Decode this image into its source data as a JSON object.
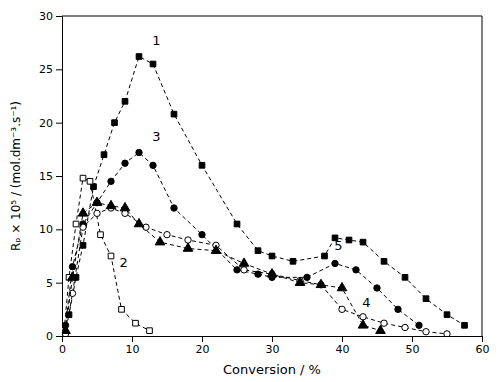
{
  "chart_data": {
    "type": "line",
    "xlabel": "Conversion / %",
    "ylabel": "Rₚ × 10⁵ / (mol.dm⁻³.s⁻¹)",
    "xlim": [
      0,
      60
    ],
    "ylim": [
      0,
      30
    ],
    "xticks": [
      0,
      10,
      20,
      30,
      40,
      50,
      60
    ],
    "yticks": [
      0,
      5,
      10,
      15,
      20,
      25,
      30
    ],
    "grid": false,
    "series": [
      {
        "color": "#000000",
        "marker": "filled-square",
        "line_style": "dashed",
        "x": [
          0.3,
          1.0,
          2.0,
          3.0,
          4.5,
          6.0,
          7.5,
          9.0,
          11.0,
          13.0,
          16.0,
          20.0,
          25.0,
          28.0,
          30.0,
          33.0,
          37.5,
          39.0,
          41.0,
          43.0,
          46.0,
          49.0,
          52.0,
          55.0,
          57.5
        ],
        "values": [
          0.5,
          2.0,
          5.5,
          8.5,
          14.0,
          17.0,
          20.0,
          22.0,
          26.2,
          25.5,
          20.8,
          16.0,
          10.5,
          8.0,
          7.5,
          7.0,
          7.5,
          9.2,
          9.0,
          8.8,
          7.0,
          5.5,
          3.5,
          2.0,
          1.0
        ]
      },
      {
        "color": "#000000",
        "marker": "open-square",
        "line_style": "dashed",
        "x": [
          0.3,
          1.0,
          2.0,
          3.0,
          4.0,
          5.5,
          7.0,
          8.5,
          10.5,
          12.5
        ],
        "values": [
          0.5,
          5.5,
          10.5,
          14.8,
          14.5,
          9.5,
          7.5,
          2.5,
          1.2,
          0.5
        ]
      },
      {
        "color": "#000000",
        "marker": "filled-circle",
        "line_style": "dashed",
        "x": [
          0.5,
          1.5,
          3.0,
          5.0,
          7.0,
          9.0,
          11.0,
          13.0,
          16.0,
          20.0,
          25.0,
          28.0,
          30.0,
          35.0,
          39.0,
          42.0,
          45.0,
          48.0,
          51.0
        ],
        "values": [
          1.0,
          6.5,
          10.5,
          12.5,
          14.5,
          16.2,
          17.2,
          16.0,
          12.0,
          9.5,
          6.2,
          5.8,
          5.5,
          5.5,
          6.8,
          6.2,
          4.5,
          2.5,
          1.0
        ]
      },
      {
        "color": "#000000",
        "marker": "open-circle",
        "line_style": "dashed",
        "x": [
          0.5,
          1.5,
          3.0,
          5.0,
          7.0,
          9.0,
          12.0,
          15.0,
          18.0,
          22.0,
          26.0,
          30.0,
          34.0,
          37.0,
          40.0,
          43.0,
          46.0,
          49.0,
          52.0,
          55.0
        ],
        "values": [
          0.2,
          4.0,
          10.2,
          11.5,
          12.0,
          11.5,
          10.2,
          9.5,
          9.0,
          8.5,
          6.2,
          5.8,
          5.2,
          4.8,
          2.5,
          1.8,
          1.2,
          0.8,
          0.4,
          0.2
        ]
      },
      {
        "color": "#000000",
        "marker": "filled-triangle",
        "line_style": "dashed",
        "x": [
          0.5,
          1.5,
          3.0,
          5.0,
          7.0,
          9.0,
          11.0,
          14.0,
          18.0,
          22.0,
          26.0,
          30.0,
          34.0,
          37.0,
          40.0,
          43.0,
          45.5
        ],
        "values": [
          0.5,
          5.5,
          11.5,
          12.5,
          12.2,
          12.0,
          10.5,
          8.8,
          8.2,
          8.0,
          6.8,
          5.8,
          5.0,
          4.8,
          4.5,
          1.0,
          0.5
        ]
      }
    ],
    "annotations": [
      {
        "text": "1",
        "x": 13.5,
        "y": 27.0
      },
      {
        "text": "2",
        "x": 8.8,
        "y": 6.2
      },
      {
        "text": "3",
        "x": 13.5,
        "y": 18.0
      },
      {
        "text": "4",
        "x": 43.5,
        "y": 2.5
      },
      {
        "text": "5",
        "x": 39.5,
        "y": 7.8
      }
    ]
  }
}
